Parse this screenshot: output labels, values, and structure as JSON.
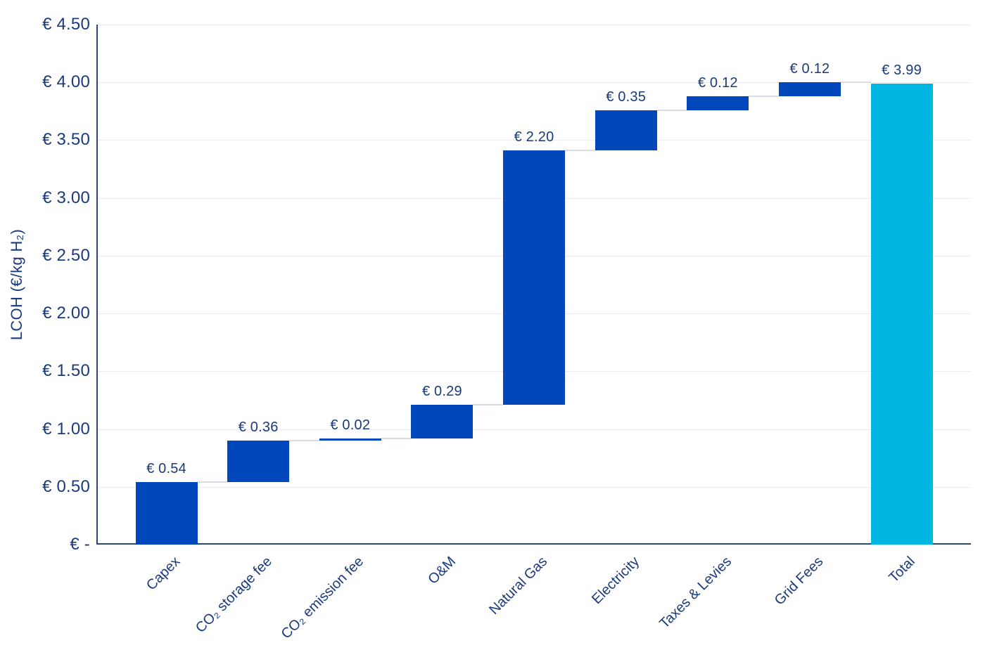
{
  "chart_data": {
    "type": "waterfall",
    "title": "",
    "xlabel": "",
    "ylabel": "LCOH (€/kg H₂)",
    "ylim": [
      0,
      4.5
    ],
    "grid": true,
    "legend": false,
    "categories": [
      "Capex",
      "CO₂ storage fee",
      "CO₂ emission fee",
      "O&M",
      "Natural Gas",
      "Electricity",
      "Taxes & Levies",
      "Grid Fees",
      "Total"
    ],
    "values": [
      0.54,
      0.36,
      0.02,
      0.29,
      2.2,
      0.35,
      0.12,
      0.12,
      3.99
    ],
    "bar_types": [
      "delta",
      "delta",
      "delta",
      "delta",
      "delta",
      "delta",
      "delta",
      "delta",
      "total"
    ],
    "cumulative_start": [
      0,
      0.54,
      0.9,
      0.92,
      1.21,
      3.41,
      3.76,
      3.88,
      0
    ],
    "cumulative_end": [
      0.54,
      0.9,
      0.92,
      1.21,
      3.41,
      3.76,
      3.88,
      4.0,
      3.99
    ],
    "value_labels": [
      "€ 0.54",
      "€ 0.36",
      "€ 0.02",
      "€ 0.29",
      "€ 2.20",
      "€ 0.35",
      "€ 0.12",
      "€ 0.12",
      "€ 3.99"
    ],
    "y_ticks": [
      {
        "value": 4.5,
        "label": "€ 4.50"
      },
      {
        "value": 4.0,
        "label": "€ 4.00"
      },
      {
        "value": 3.5,
        "label": "€ 3.50"
      },
      {
        "value": 3.0,
        "label": "€ 3.00"
      },
      {
        "value": 2.5,
        "label": "€ 2.50"
      },
      {
        "value": 2.0,
        "label": "€ 2.00"
      },
      {
        "value": 1.5,
        "label": "€ 1.50"
      },
      {
        "value": 1.0,
        "label": "€ 1.00"
      },
      {
        "value": 0.5,
        "label": "€ 0.50"
      },
      {
        "value": 0,
        "label": "€ -"
      }
    ],
    "colors": {
      "delta_bar": "#0047BC",
      "total_bar": "#00B7E2",
      "text": "#1B3A7D",
      "axis_line": "#2A4683",
      "gridline": "#E9EDF3",
      "connector": "#D9DDE6"
    }
  }
}
